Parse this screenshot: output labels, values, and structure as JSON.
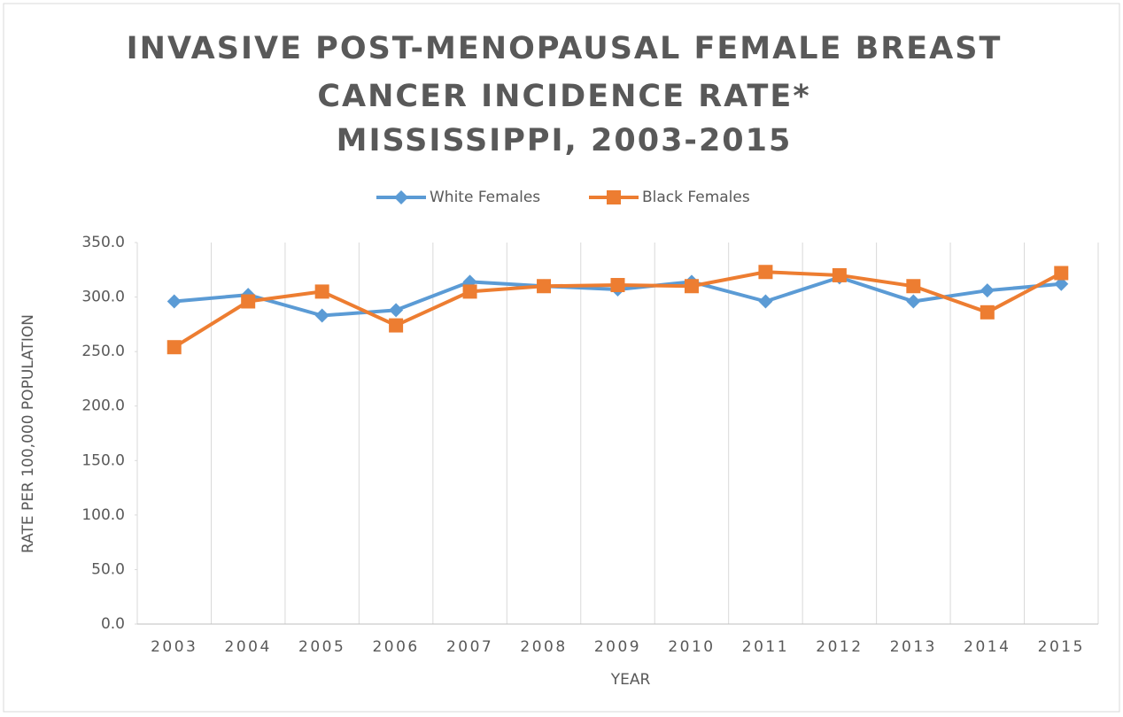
{
  "chart_data": {
    "type": "line",
    "title": [
      "INVASIVE POST-MENOPAUSAL FEMALE BREAST",
      "CANCER INCIDENCE RATE*",
      "MISSISSIPPI, 2003-2015"
    ],
    "x_label": "YEAR",
    "y_label": "RATE PER 100,000 POPULATION",
    "categories": [
      "2003",
      "2004",
      "2005",
      "2006",
      "2007",
      "2008",
      "2009",
      "2010",
      "2011",
      "2012",
      "2013",
      "2014",
      "2015"
    ],
    "series": [
      {
        "name": "White Females",
        "color": "#5b9bd5",
        "marker": "diamond",
        "values": [
          296,
          302,
          283,
          288,
          314,
          310,
          307,
          314,
          296,
          318,
          296,
          306,
          312
        ]
      },
      {
        "name": "Black Females",
        "color": "#ed7d31",
        "marker": "square",
        "values": [
          254,
          296,
          305,
          274,
          305,
          310,
          311,
          310,
          323,
          320,
          310,
          286,
          322
        ]
      }
    ],
    "ylim": [
      0,
      350
    ],
    "yticks": [
      {
        "value": 0,
        "label": "0.0"
      },
      {
        "value": 50,
        "label": "50.0"
      },
      {
        "value": 100,
        "label": "100.0"
      },
      {
        "value": 150,
        "label": "150.0"
      },
      {
        "value": 200,
        "label": "200.0"
      },
      {
        "value": 250,
        "label": "250.0"
      },
      {
        "value": 300,
        "label": "300.0"
      },
      {
        "value": 350,
        "label": "350.0"
      }
    ],
    "grid": "vertical",
    "legend": "top"
  }
}
